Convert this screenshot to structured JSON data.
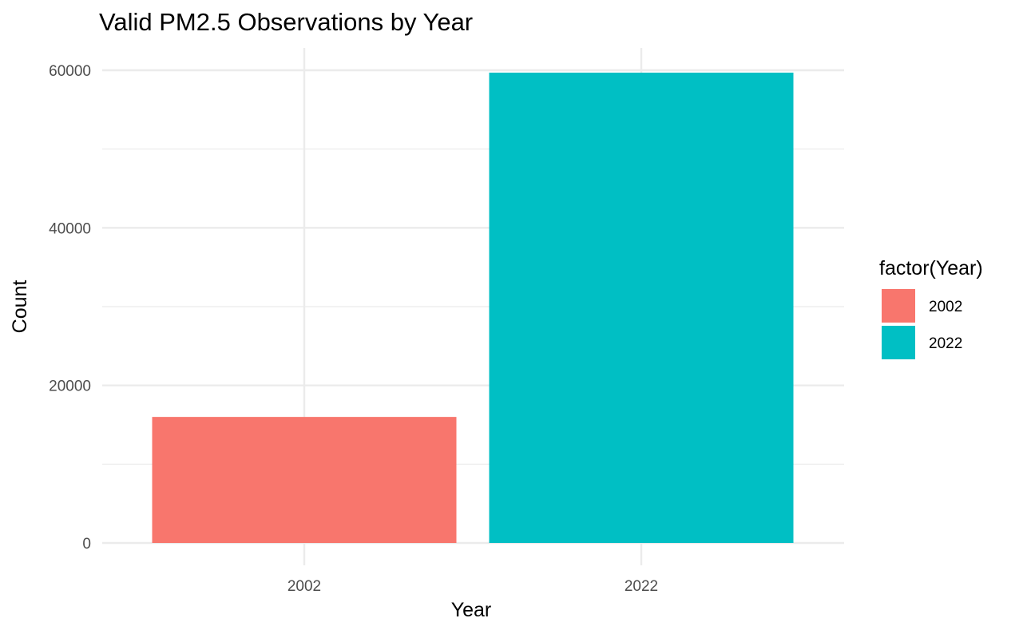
{
  "chart_data": {
    "type": "bar",
    "title": "Valid PM2.5 Observations by Year",
    "xlabel": "Year",
    "ylabel": "Count",
    "categories": [
      "2002",
      "2022"
    ],
    "values": [
      16000,
      59700
    ],
    "colors": [
      "#F8766D",
      "#00BFC4"
    ],
    "ylim": [
      0,
      62500
    ],
    "yticks": [
      0,
      20000,
      40000,
      60000
    ],
    "yticks_minor": [
      10000,
      30000,
      50000
    ],
    "grid": true,
    "legend": {
      "title": "factor(Year)",
      "placement": "right",
      "entries": [
        "2002",
        "2022"
      ]
    }
  }
}
